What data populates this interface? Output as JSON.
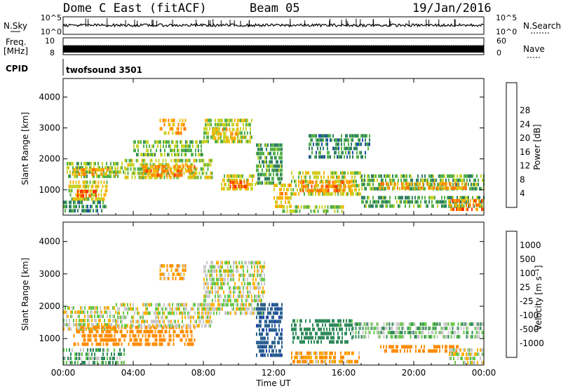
{
  "header": {
    "station": "Dome C East (fitACF)",
    "beam": "Beam 05",
    "date": "19/Jan/2016"
  },
  "aux_panels": {
    "nsky_label": "N.Sky",
    "nsky_ticks": [
      "10^5",
      "10^0"
    ],
    "nsearch_label": "N.Search",
    "nsearch_ticks": [
      "10^5",
      "10^0"
    ],
    "freq_label_1": "Freq.",
    "freq_label_2": "[MHz]",
    "freq_ticks": [
      "10",
      "8"
    ],
    "nave_label": "Nave",
    "nave_ticks": [
      "60",
      "0"
    ],
    "cpid_label": "CPID",
    "cpid_value": "twofsound 3501"
  },
  "colors": {
    "power_scale": [
      "#0000ff",
      "#1f4fa8",
      "#2f7f63",
      "#52b04a",
      "#c8d226",
      "#ffb000",
      "#ff7a00",
      "#ff3300",
      "#e60000"
    ],
    "velocity_scale": [
      "#1f3fb0",
      "#2a6090",
      "#2f8a5a",
      "#66c94a",
      "#c8c8c8",
      "#ffb000",
      "#ff8c00",
      "#ff4a00",
      "#e60000"
    ]
  },
  "chart_data": [
    {
      "type": "heatmap",
      "panel": "power",
      "xlabel": "",
      "ylabel": "Slant Range [km]",
      "x_ticks": [
        "00:00",
        "04:00",
        "08:00",
        "12:00",
        "16:00",
        "20:00",
        "00:00"
      ],
      "y_ticks": [
        "1000",
        "2000",
        "3000",
        "4000"
      ],
      "ylim": [
        180,
        4600
      ],
      "colorbar_label": "Power [dB]",
      "colorbar_ticks": [
        "4",
        "8",
        "12",
        "16",
        "20",
        "24",
        "28"
      ],
      "colorbar_range": [
        0,
        32
      ],
      "regions": [
        {
          "t0": 0.2,
          "t1": 3.5,
          "r0": 1400,
          "r1": 1900,
          "v": 15
        },
        {
          "t0": 0.5,
          "t1": 3.0,
          "r0": 1500,
          "r1": 1700,
          "v": 23
        },
        {
          "t0": 0.3,
          "t1": 2.5,
          "r0": 700,
          "r1": 1300,
          "v": 19
        },
        {
          "t0": 0.8,
          "t1": 2.0,
          "r0": 800,
          "r1": 1000,
          "v": 27
        },
        {
          "t0": 0.0,
          "t1": 2.5,
          "r0": 250,
          "r1": 650,
          "v": 11
        },
        {
          "t0": 3.5,
          "t1": 8.5,
          "r0": 1400,
          "r1": 2000,
          "v": 17
        },
        {
          "t0": 4.5,
          "t1": 7.5,
          "r0": 1500,
          "r1": 1800,
          "v": 25
        },
        {
          "t0": 5.5,
          "t1": 7.0,
          "r0": 2800,
          "r1": 3300,
          "v": 22
        },
        {
          "t0": 4.0,
          "t1": 8.0,
          "r0": 2100,
          "r1": 2600,
          "v": 15
        },
        {
          "t0": 8.0,
          "t1": 10.8,
          "r0": 2500,
          "r1": 3300,
          "v": 17
        },
        {
          "t0": 8.5,
          "t1": 10.0,
          "r0": 2600,
          "r1": 3000,
          "v": 21
        },
        {
          "t0": 9.0,
          "t1": 11.0,
          "r0": 1000,
          "r1": 1500,
          "v": 19
        },
        {
          "t0": 9.5,
          "t1": 10.5,
          "r0": 1100,
          "r1": 1300,
          "v": 27
        },
        {
          "t0": 11.0,
          "t1": 12.5,
          "r0": 1200,
          "r1": 2500,
          "v": 13
        },
        {
          "t0": 12.0,
          "t1": 13.0,
          "r0": 400,
          "r1": 1200,
          "v": 21
        },
        {
          "t0": 13.0,
          "t1": 17.0,
          "r0": 900,
          "r1": 1600,
          "v": 18
        },
        {
          "t0": 13.5,
          "t1": 16.5,
          "r0": 1000,
          "r1": 1300,
          "v": 25
        },
        {
          "t0": 14.0,
          "t1": 17.5,
          "r0": 2000,
          "r1": 2800,
          "v": 11
        },
        {
          "t0": 17.0,
          "t1": 24.0,
          "r0": 1000,
          "r1": 1500,
          "v": 14
        },
        {
          "t0": 18.0,
          "t1": 23.0,
          "r0": 1050,
          "r1": 1250,
          "v": 23
        },
        {
          "t0": 17.0,
          "t1": 24.0,
          "r0": 400,
          "r1": 800,
          "v": 13
        },
        {
          "t0": 22.0,
          "t1": 24.0,
          "r0": 300,
          "r1": 700,
          "v": 25
        },
        {
          "t0": 12.5,
          "t1": 16.0,
          "r0": 250,
          "r1": 500,
          "v": 17
        }
      ]
    },
    {
      "type": "heatmap",
      "panel": "velocity",
      "xlabel": "Time UT",
      "ylabel": "Slant Range [km]",
      "x_ticks": [
        "00:00",
        "04:00",
        "08:00",
        "12:00",
        "16:00",
        "20:00",
        "00:00"
      ],
      "y_ticks": [
        "1000",
        "2000",
        "3000",
        "4000"
      ],
      "ylim": [
        180,
        4600
      ],
      "colorbar_label": "Velocity [m s⁻¹]",
      "colorbar_ticks": [
        "1000",
        "500",
        "100",
        "25",
        "-25",
        "-100",
        "-500",
        "-1000"
      ],
      "regions": [
        {
          "t0": 0.0,
          "t1": 3.0,
          "r0": 1300,
          "r1": 2000,
          "v": 0
        },
        {
          "t0": 0.5,
          "t1": 7.5,
          "r0": 800,
          "r1": 1400,
          "v": -200
        },
        {
          "t0": 3.0,
          "t1": 8.5,
          "r0": 1400,
          "r1": 2100,
          "v": 0
        },
        {
          "t0": 8.0,
          "t1": 11.5,
          "r0": 1800,
          "r1": 3400,
          "v": 0
        },
        {
          "t0": 5.5,
          "t1": 7.0,
          "r0": 2800,
          "r1": 3300,
          "v": -60
        },
        {
          "t0": 0.0,
          "t1": 3.5,
          "r0": 250,
          "r1": 700,
          "v": 60
        },
        {
          "t0": 11.0,
          "t1": 12.5,
          "r0": 500,
          "r1": 2100,
          "v": 700
        },
        {
          "t0": 13.0,
          "t1": 16.5,
          "r0": 900,
          "r1": 1600,
          "v": 120
        },
        {
          "t0": 16.5,
          "t1": 24.0,
          "r0": 1000,
          "r1": 1500,
          "v": 40
        },
        {
          "t0": 18.0,
          "t1": 22.5,
          "r0": 550,
          "r1": 800,
          "v": -200
        },
        {
          "t0": 22.0,
          "t1": 24.0,
          "r0": 300,
          "r1": 700,
          "v": 0
        },
        {
          "t0": 13.0,
          "t1": 17.0,
          "r0": 250,
          "r1": 600,
          "v": -60
        }
      ]
    }
  ]
}
